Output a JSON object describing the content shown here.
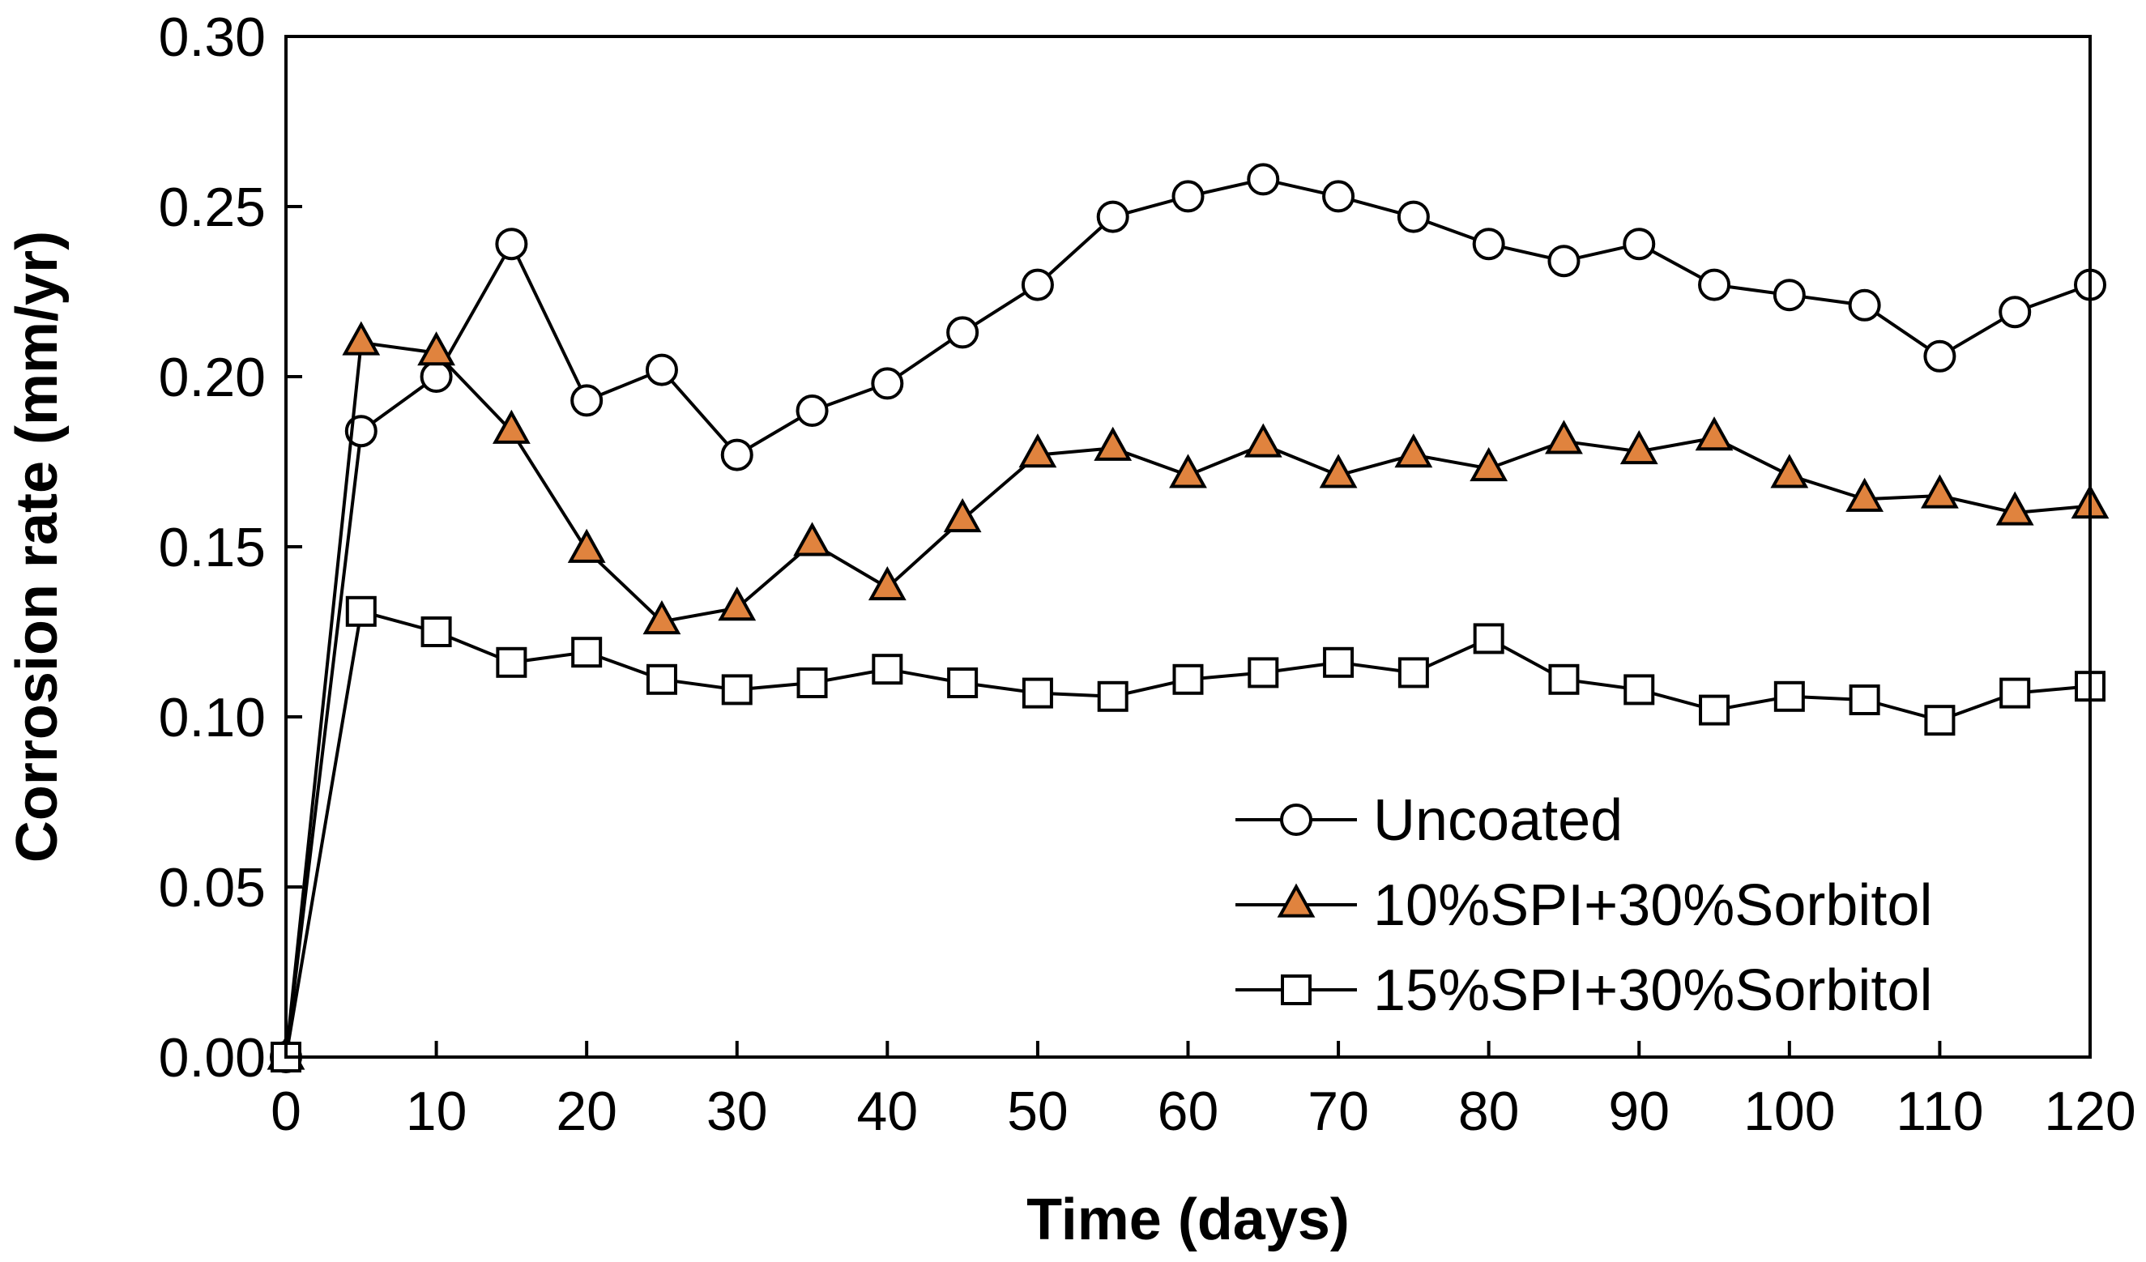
{
  "chart_data": {
    "type": "line",
    "title": "",
    "xlabel": "Time (days)",
    "ylabel": "Corrosion rate (mm/yr)",
    "xlim": [
      0,
      120
    ],
    "ylim": [
      0,
      0.3
    ],
    "xticks": [
      0,
      10,
      20,
      30,
      40,
      50,
      60,
      70,
      80,
      90,
      100,
      110,
      120
    ],
    "xtick_labels": [
      "0",
      "10",
      "20",
      "30",
      "40",
      "50",
      "60",
      "70",
      "80",
      "90",
      "100",
      "110",
      "120"
    ],
    "yticks": [
      0,
      0.05,
      0.1,
      0.15,
      0.2,
      0.25,
      0.3
    ],
    "ytick_labels": [
      "0.00",
      "0.05",
      "0.10",
      "0.15",
      "0.20",
      "0.25",
      "0.30"
    ],
    "grid": false,
    "legend_position": "bottom-right",
    "x": [
      0,
      5,
      10,
      15,
      20,
      25,
      30,
      35,
      40,
      45,
      50,
      55,
      60,
      65,
      70,
      75,
      80,
      85,
      90,
      95,
      100,
      105,
      110,
      115,
      120
    ],
    "series": [
      {
        "name": "Uncoated",
        "marker": "circle",
        "marker_fill": "#ffffff",
        "values": [
          0.0,
          0.184,
          0.2,
          0.239,
          0.193,
          0.202,
          0.177,
          0.19,
          0.198,
          0.213,
          0.227,
          0.247,
          0.253,
          0.258,
          0.253,
          0.247,
          0.239,
          0.234,
          0.239,
          0.227,
          0.224,
          0.221,
          0.206,
          0.219,
          0.227
        ]
      },
      {
        "name": "10%SPI+30%Sorbitol",
        "marker": "triangle",
        "marker_fill": "#e0833e",
        "values": [
          0.0,
          0.21,
          0.207,
          0.184,
          0.149,
          0.128,
          0.132,
          0.151,
          0.138,
          0.158,
          0.177,
          0.179,
          0.171,
          0.18,
          0.171,
          0.177,
          0.173,
          0.181,
          0.178,
          0.182,
          0.171,
          0.164,
          0.165,
          0.16,
          0.162
        ]
      },
      {
        "name": "15%SPI+30%Sorbitol",
        "marker": "square",
        "marker_fill": "#ffffff",
        "values": [
          0.0,
          0.131,
          0.125,
          0.116,
          0.119,
          0.111,
          0.108,
          0.11,
          0.114,
          0.11,
          0.107,
          0.106,
          0.111,
          0.113,
          0.116,
          0.113,
          0.123,
          0.111,
          0.108,
          0.102,
          0.106,
          0.105,
          0.099,
          0.107,
          0.109
        ]
      }
    ]
  },
  "colors": {
    "line": "#000000",
    "triangle_fill": "#e0833e",
    "background": "#ffffff"
  }
}
